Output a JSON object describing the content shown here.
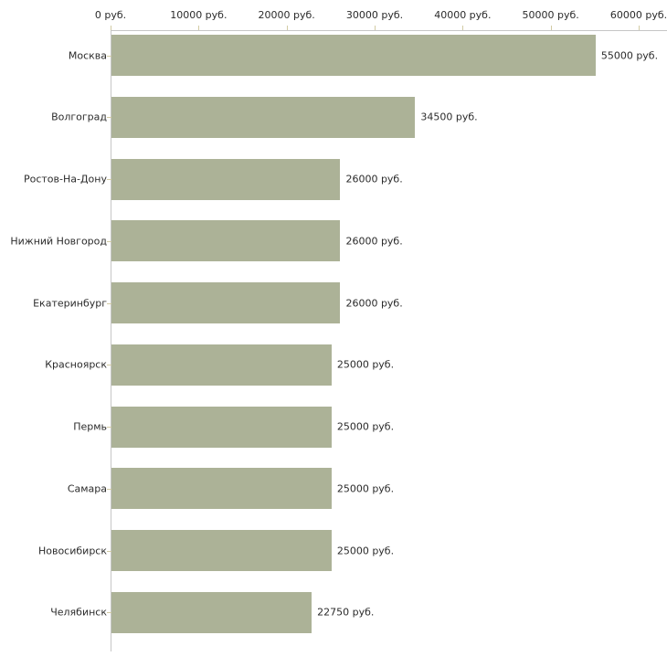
{
  "chart_data": {
    "type": "bar",
    "orientation": "horizontal",
    "title": "",
    "xlabel": "",
    "ylabel": "",
    "unit": "руб.",
    "categories": [
      "Москва",
      "Волгоград",
      "Ростов-На-Дону",
      "Нижний Новгород",
      "Екатеринбург",
      "Красноярск",
      "Пермь",
      "Самара",
      "Новосибирск",
      "Челябинск"
    ],
    "values": [
      55000,
      34500,
      26000,
      26000,
      26000,
      25000,
      25000,
      25000,
      25000,
      22750
    ],
    "value_labels": [
      "55000 руб.",
      "34500 руб.",
      "26000 руб.",
      "26000 руб.",
      "26000 руб.",
      "25000 руб.",
      "25000 руб.",
      "25000 руб.",
      "25000 руб.",
      "22750 руб."
    ],
    "x_ticks": {
      "values": [
        0,
        10000,
        20000,
        30000,
        40000,
        50000,
        60000
      ],
      "labels": [
        "0 руб.",
        "10000 руб.",
        "20000 руб.",
        "30000 руб.",
        "40000 руб.",
        "50000 руб.",
        "60000 руб."
      ]
    },
    "xlim": [
      0,
      60000
    ],
    "grid": false,
    "legend": false,
    "axis_position": "top",
    "colors": {
      "bar": "#acb297",
      "axis_line": "#c6c6c6",
      "tick_mark": "#d2cba4",
      "text": "#2b2b2b",
      "background": "#ffffff"
    }
  }
}
